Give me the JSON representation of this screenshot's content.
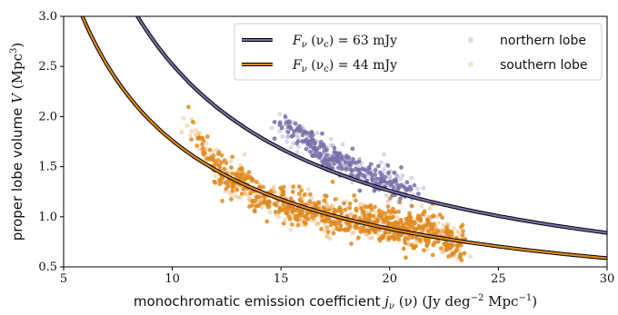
{
  "chart_data": {
    "type": "scatter",
    "xlabel": "monochromatic emission coefficient jν (ν)  (Jy deg⁻² Mpc⁻¹)",
    "ylabel": "proper lobe volume V  (Mpc³)",
    "xlim": [
      5,
      30
    ],
    "ylim": [
      0.5,
      3.0
    ],
    "xticks": [
      "5",
      "10",
      "15",
      "20",
      "25",
      "30"
    ],
    "yticks": [
      "0.5",
      "1.0",
      "1.5",
      "2.0",
      "2.5",
      "3.0"
    ],
    "legend_position": "top-right",
    "curves": [
      {
        "name": "Fν (νc) = 63 mJy",
        "flux_mJy": 63,
        "V_times_j": 25.2,
        "color": "#7a6ea8"
      },
      {
        "name": "Fν (νc) = 44 mJy",
        "flux_mJy": 44,
        "V_times_j": 17.6,
        "color": "#e0891f"
      }
    ],
    "scatter_series": [
      {
        "name": "northern lobe",
        "color": "#7a6ea8",
        "x_range": [
          14.0,
          21.5
        ],
        "y_range": [
          1.2,
          2.0
        ],
        "n_points": 380,
        "points": [
          [
            15.2,
            1.92
          ],
          [
            15.6,
            1.85
          ],
          [
            16.1,
            1.78
          ],
          [
            16.5,
            1.7
          ],
          [
            17.0,
            1.62
          ],
          [
            17.5,
            1.58
          ],
          [
            18.0,
            1.5
          ],
          [
            18.6,
            1.45
          ],
          [
            19.2,
            1.4
          ],
          [
            19.8,
            1.35
          ],
          [
            20.4,
            1.3
          ],
          [
            21.0,
            1.25
          ]
        ]
      },
      {
        "name": "southern lobe",
        "color": "#e0891f",
        "x_range": [
          10.5,
          23.5
        ],
        "y_range": [
          0.65,
          2.05
        ],
        "n_points": 1100,
        "points": [
          [
            11.0,
            1.9
          ],
          [
            11.5,
            1.6
          ],
          [
            12.5,
            1.4
          ],
          [
            13.5,
            1.3
          ],
          [
            14.5,
            1.15
          ],
          [
            15.5,
            1.1
          ],
          [
            16.5,
            1.05
          ],
          [
            17.5,
            1.0
          ],
          [
            18.5,
            0.98
          ],
          [
            19.5,
            0.93
          ],
          [
            20.5,
            0.9
          ],
          [
            21.5,
            0.87
          ],
          [
            22.5,
            0.8
          ],
          [
            23.2,
            0.72
          ]
        ]
      }
    ],
    "legend": {
      "curve_entries": [
        {
          "prefix": "F",
          "sub": "ν",
          "mid": " (ν",
          "sub2": "c",
          "suffix": ") = 63 mJy"
        },
        {
          "prefix": "F",
          "sub": "ν",
          "mid": " (ν",
          "sub2": "c",
          "suffix": ") = 44 mJy"
        }
      ],
      "scatter_entries": [
        "northern lobe",
        "southern lobe"
      ]
    },
    "axis_text": {
      "x_words": "monochromatic emission coefficient ",
      "x_sym": "j",
      "x_sub": "ν",
      "x_arg": " (ν)",
      "x_unit_pre": "Jy deg",
      "x_exp1": "−2",
      "x_unit_mid": " Mpc",
      "x_exp2": "−1",
      "y_words": "proper lobe volume ",
      "y_sym": "V",
      "y_unit": "Mpc",
      "y_exp": "3"
    }
  }
}
